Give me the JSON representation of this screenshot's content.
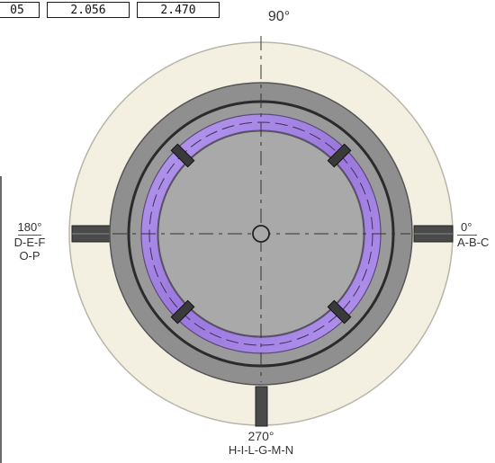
{
  "header_values": [
    "05",
    "2.056",
    "2.470"
  ],
  "orientation": {
    "top": {
      "angle": "90°"
    },
    "left": {
      "angle": "180°",
      "line1": "D-E-F",
      "line2": "O-P"
    },
    "right": {
      "angle": "0°",
      "line1": "A-B-C"
    },
    "bottom": {
      "angle": "270°",
      "line1": "H-I-L-G-M-N"
    }
  },
  "colors": {
    "outer_ring": "#f3f0e2",
    "housing": "#8f8f8f",
    "inner_disc": "#a9a9a9",
    "purple_band": "#a07ee0",
    "dark_line": "#2b2b2b",
    "stub": "#4a4a4a"
  }
}
